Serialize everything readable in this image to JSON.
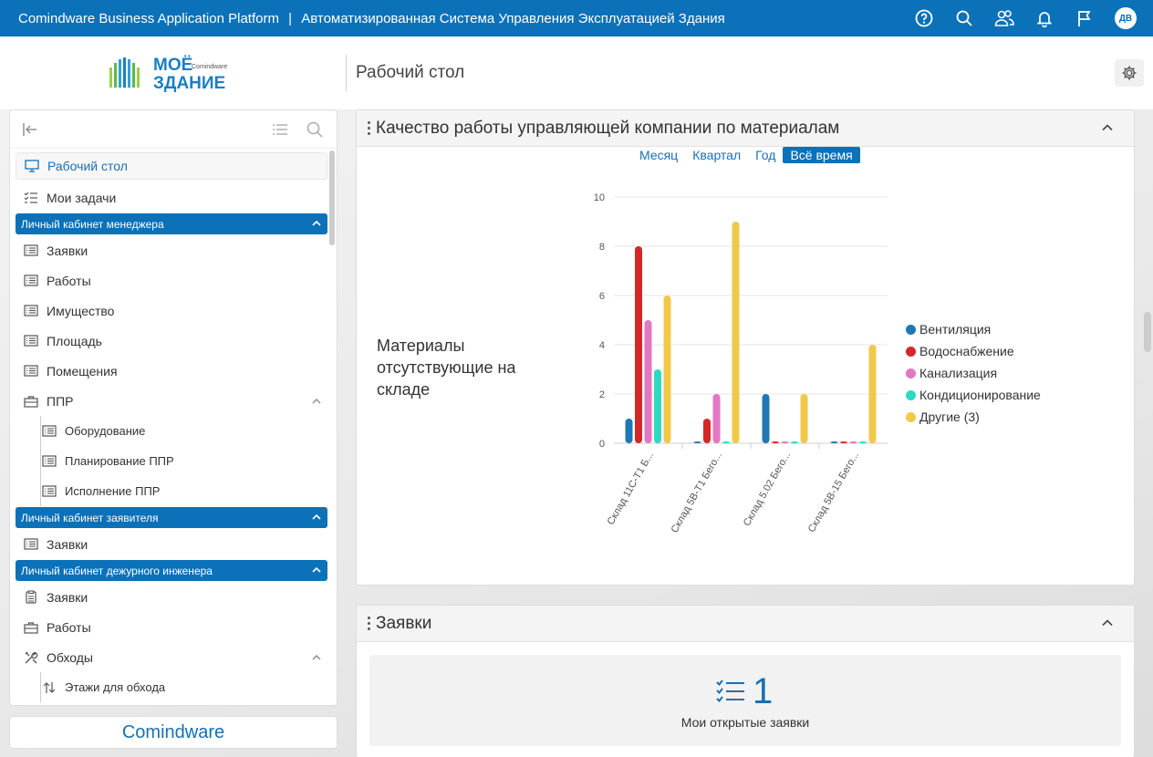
{
  "topbar": {
    "app_name": "Comindware Business Application Platform",
    "separator": "|",
    "system_name": "Автоматизированная Система Управления Эксплуатацией Здания",
    "user_initials": "ДВ"
  },
  "header": {
    "logo_line1": "МОЁ",
    "logo_line2": "ЗДАНИЕ",
    "logo_brand_small": "Comindware",
    "page_title": "Рабочий стол"
  },
  "sidebar": {
    "items_top": [
      {
        "label": "Рабочий стол",
        "icon": "monitor-icon"
      },
      {
        "label": "Мои задачи",
        "icon": "tasks-icon"
      }
    ],
    "group_manager": {
      "label": "Личный кабинет менеджера",
      "items": [
        "Заявки",
        "Работы",
        "Имущество",
        "Площадь",
        "Помещения"
      ],
      "ppr": {
        "label": "ППР",
        "subitems": [
          "Оборудование",
          "Планирование ППР",
          "Исполнение ППР"
        ]
      }
    },
    "group_applicant": {
      "label": "Личный кабинет заявителя",
      "items": [
        "Заявки"
      ]
    },
    "group_engineer": {
      "label": "Личный кабинет дежурного инженера",
      "items": [
        "Заявки",
        "Работы"
      ],
      "obhody": {
        "label": "Обходы",
        "subitems": [
          "Этажи для обхода"
        ]
      }
    }
  },
  "brand_footer": {
    "text_a": "Comind",
    "text_b": "ware"
  },
  "chart_panel": {
    "title": "Качество работы управляющей компании по материалам",
    "periods": [
      "Месяц",
      "Квартал",
      "Год",
      "Всё время"
    ],
    "active_period": "Всё время",
    "label": "Материалы отсутствующие на складе"
  },
  "requests_panel": {
    "title": "Заявки",
    "count": "1",
    "count_label": "Мои открытые заявки"
  },
  "chart_data": {
    "type": "bar",
    "categories": [
      "Склад 11С-Т1 Б...",
      "Склад 5В-Т1 Бего...",
      "Склад 5.02 Бего...",
      "Склад 5В-15 Бего..."
    ],
    "ylim": [
      0,
      10
    ],
    "yticks": [
      0,
      2,
      4,
      6,
      8,
      10
    ],
    "series": [
      {
        "name": "Вентиляция",
        "color": "#1f77b4",
        "values": [
          1,
          0,
          2,
          0
        ]
      },
      {
        "name": "Водоснабжение",
        "color": "#d62728",
        "values": [
          8,
          1,
          0,
          0
        ]
      },
      {
        "name": "Канализация",
        "color": "#e377c2",
        "values": [
          5,
          2,
          0,
          0
        ]
      },
      {
        "name": "Кондиционирование",
        "color": "#2ed9c3",
        "values": [
          3,
          0,
          0,
          0
        ]
      },
      {
        "name": "Другие (3)",
        "color": "#f0c94a",
        "values": [
          6,
          9,
          2,
          4
        ]
      }
    ],
    "legend_position": "right"
  }
}
